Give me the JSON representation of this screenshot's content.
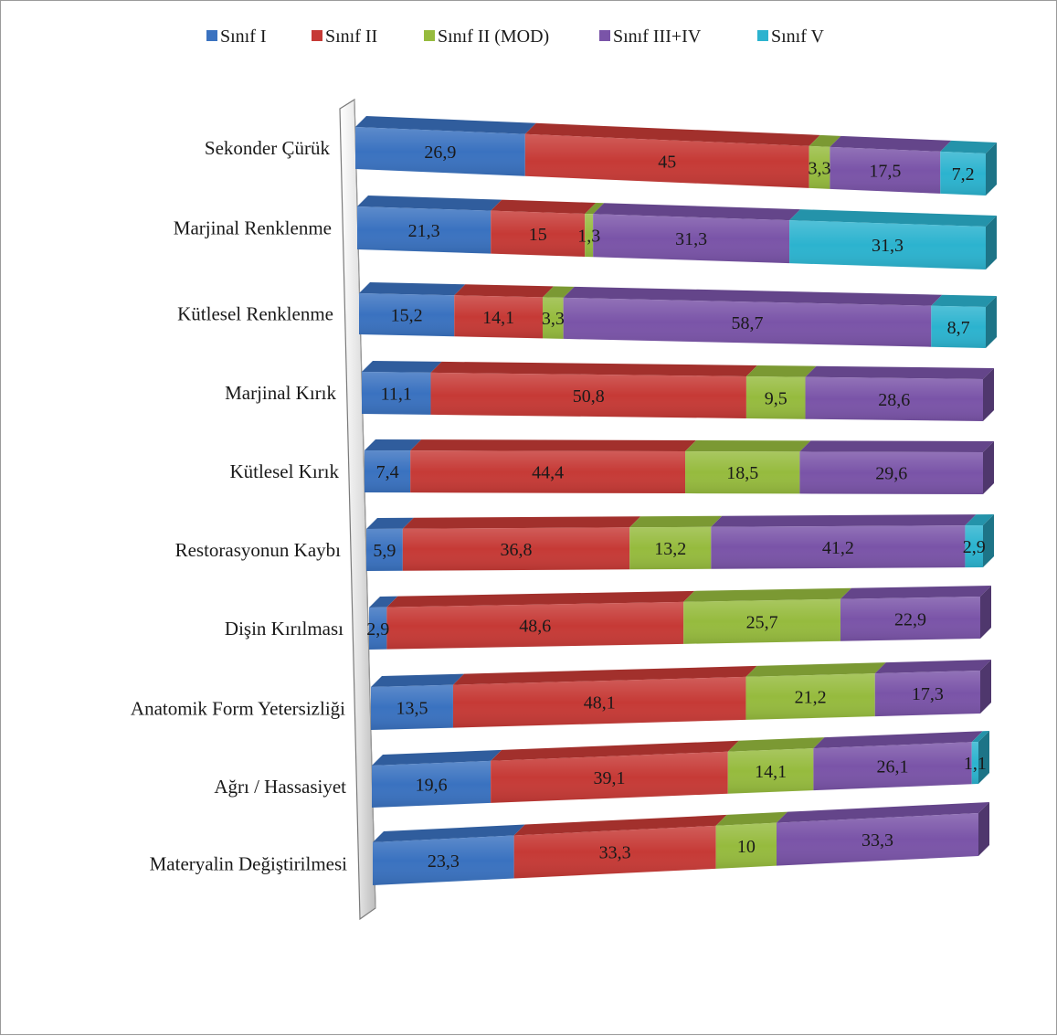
{
  "chart_data": {
    "type": "bar",
    "orientation": "horizontal",
    "stacked": "100%",
    "three_d": true,
    "legend_position": "top",
    "grid": false,
    "categories": [
      "Sekonder Çürük",
      "Marjinal Renklenme",
      "Kütlesel Renklenme",
      "Marjinal Kırık",
      "Kütlesel Kırık",
      "Restorasyonun Kaybı",
      "Dişin Kırılması",
      "Anatomik Form Yetersizliği",
      "Ağrı / Hassasiyet",
      "Materyalin Değiştirilmesi"
    ],
    "series": [
      {
        "name": "Sınıf I",
        "color": "#3a72c0",
        "values": [
          26.9,
          21.3,
          15.2,
          11.1,
          7.4,
          5.9,
          2.9,
          13.5,
          19.6,
          23.3
        ],
        "labels": [
          "26,9",
          "21,3",
          "15,2",
          "11,1",
          "7,4",
          "5,9",
          "2,9",
          "13,5",
          "19,6",
          "23,3"
        ]
      },
      {
        "name": "Sınıf II",
        "color": "#c63a36",
        "values": [
          45,
          15,
          14.1,
          50.8,
          44.4,
          36.8,
          48.6,
          48.1,
          39.1,
          33.3
        ],
        "labels": [
          "45",
          "15",
          "14,1",
          "50,8",
          "44,4",
          "36,8",
          "48,6",
          "48,1",
          "39,1",
          "33,3"
        ]
      },
      {
        "name": "Sınıf II (MOD)",
        "color": "#96bb3e",
        "values": [
          3.3,
          1.3,
          3.3,
          9.5,
          18.5,
          13.2,
          25.7,
          21.2,
          14.1,
          10
        ],
        "labels": [
          "3,3",
          "1,3",
          "3,3",
          "9,5",
          "18,5",
          "13,2",
          "25,7",
          "21,2",
          "14,1",
          "10"
        ]
      },
      {
        "name": "Sınıf III+IV",
        "color": "#7a54a8",
        "values": [
          17.5,
          31.3,
          58.7,
          28.6,
          29.6,
          41.2,
          22.9,
          17.3,
          26.1,
          33.3
        ],
        "labels": [
          "17,5",
          "31,3",
          "58,7",
          "28,6",
          "29,6",
          "41,2",
          "22,9",
          "17,3",
          "26,1",
          "33,3"
        ]
      },
      {
        "name": "Sınıf V",
        "color": "#2cb3cf",
        "values": [
          7.2,
          31.3,
          8.7,
          0,
          0,
          2.9,
          0,
          0,
          1.1,
          0
        ],
        "labels": [
          "7,2",
          "31,3",
          "8,7",
          "",
          "",
          "2,9",
          "",
          "",
          "1,1",
          ""
        ]
      }
    ]
  }
}
